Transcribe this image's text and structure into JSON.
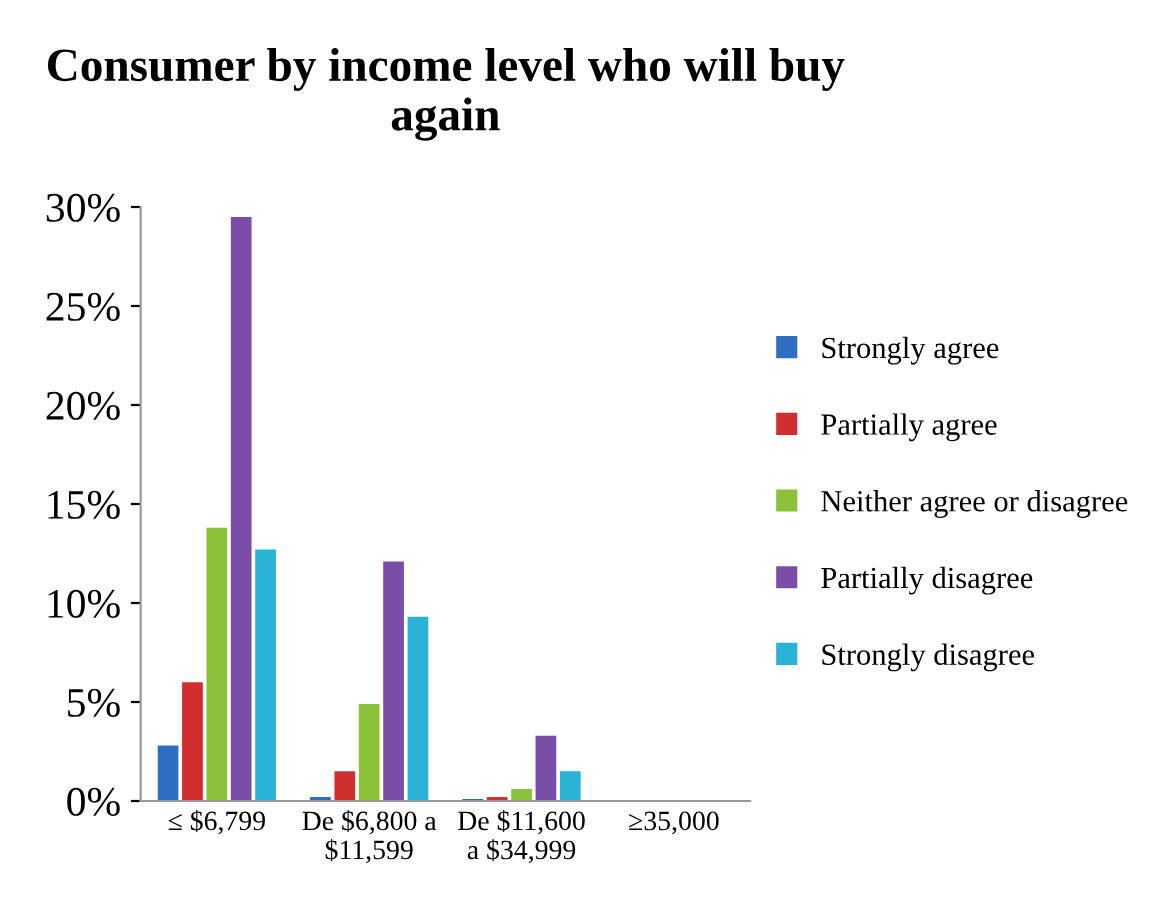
{
  "chart_data": {
    "type": "bar",
    "title": "Consumer by income level who will buy again",
    "categories": [
      "≤ $6,799",
      "De $6,800 a\n$11,599",
      "De $11,600\na $34,999",
      "≥35,000"
    ],
    "series": [
      {
        "name": "Strongly agree",
        "color": "#2e6fc4",
        "values": [
          2.8,
          0.2,
          0.1,
          0
        ]
      },
      {
        "name": "Partially agree",
        "color": "#d02f2f",
        "values": [
          6.0,
          1.5,
          0.2,
          0
        ]
      },
      {
        "name": "Neither agree or disagree",
        "color": "#8cc23a",
        "values": [
          13.8,
          4.9,
          0.6,
          0
        ]
      },
      {
        "name": "Partially disagree",
        "color": "#7a4ea8",
        "values": [
          29.5,
          12.1,
          3.3,
          0
        ]
      },
      {
        "name": "Strongly disagree",
        "color": "#29b3d6",
        "values": [
          12.7,
          9.3,
          1.5,
          0
        ]
      }
    ],
    "ylim": [
      0,
      30
    ],
    "yticks": [
      {
        "value": 0,
        "label": "0%"
      },
      {
        "value": 5,
        "label": "5%"
      },
      {
        "value": 10,
        "label": "10%"
      },
      {
        "value": 15,
        "label": "15%"
      },
      {
        "value": 20,
        "label": "20%"
      },
      {
        "value": 25,
        "label": "25%"
      },
      {
        "value": 30,
        "label": "30%"
      }
    ],
    "grid": false,
    "legend": "right"
  }
}
